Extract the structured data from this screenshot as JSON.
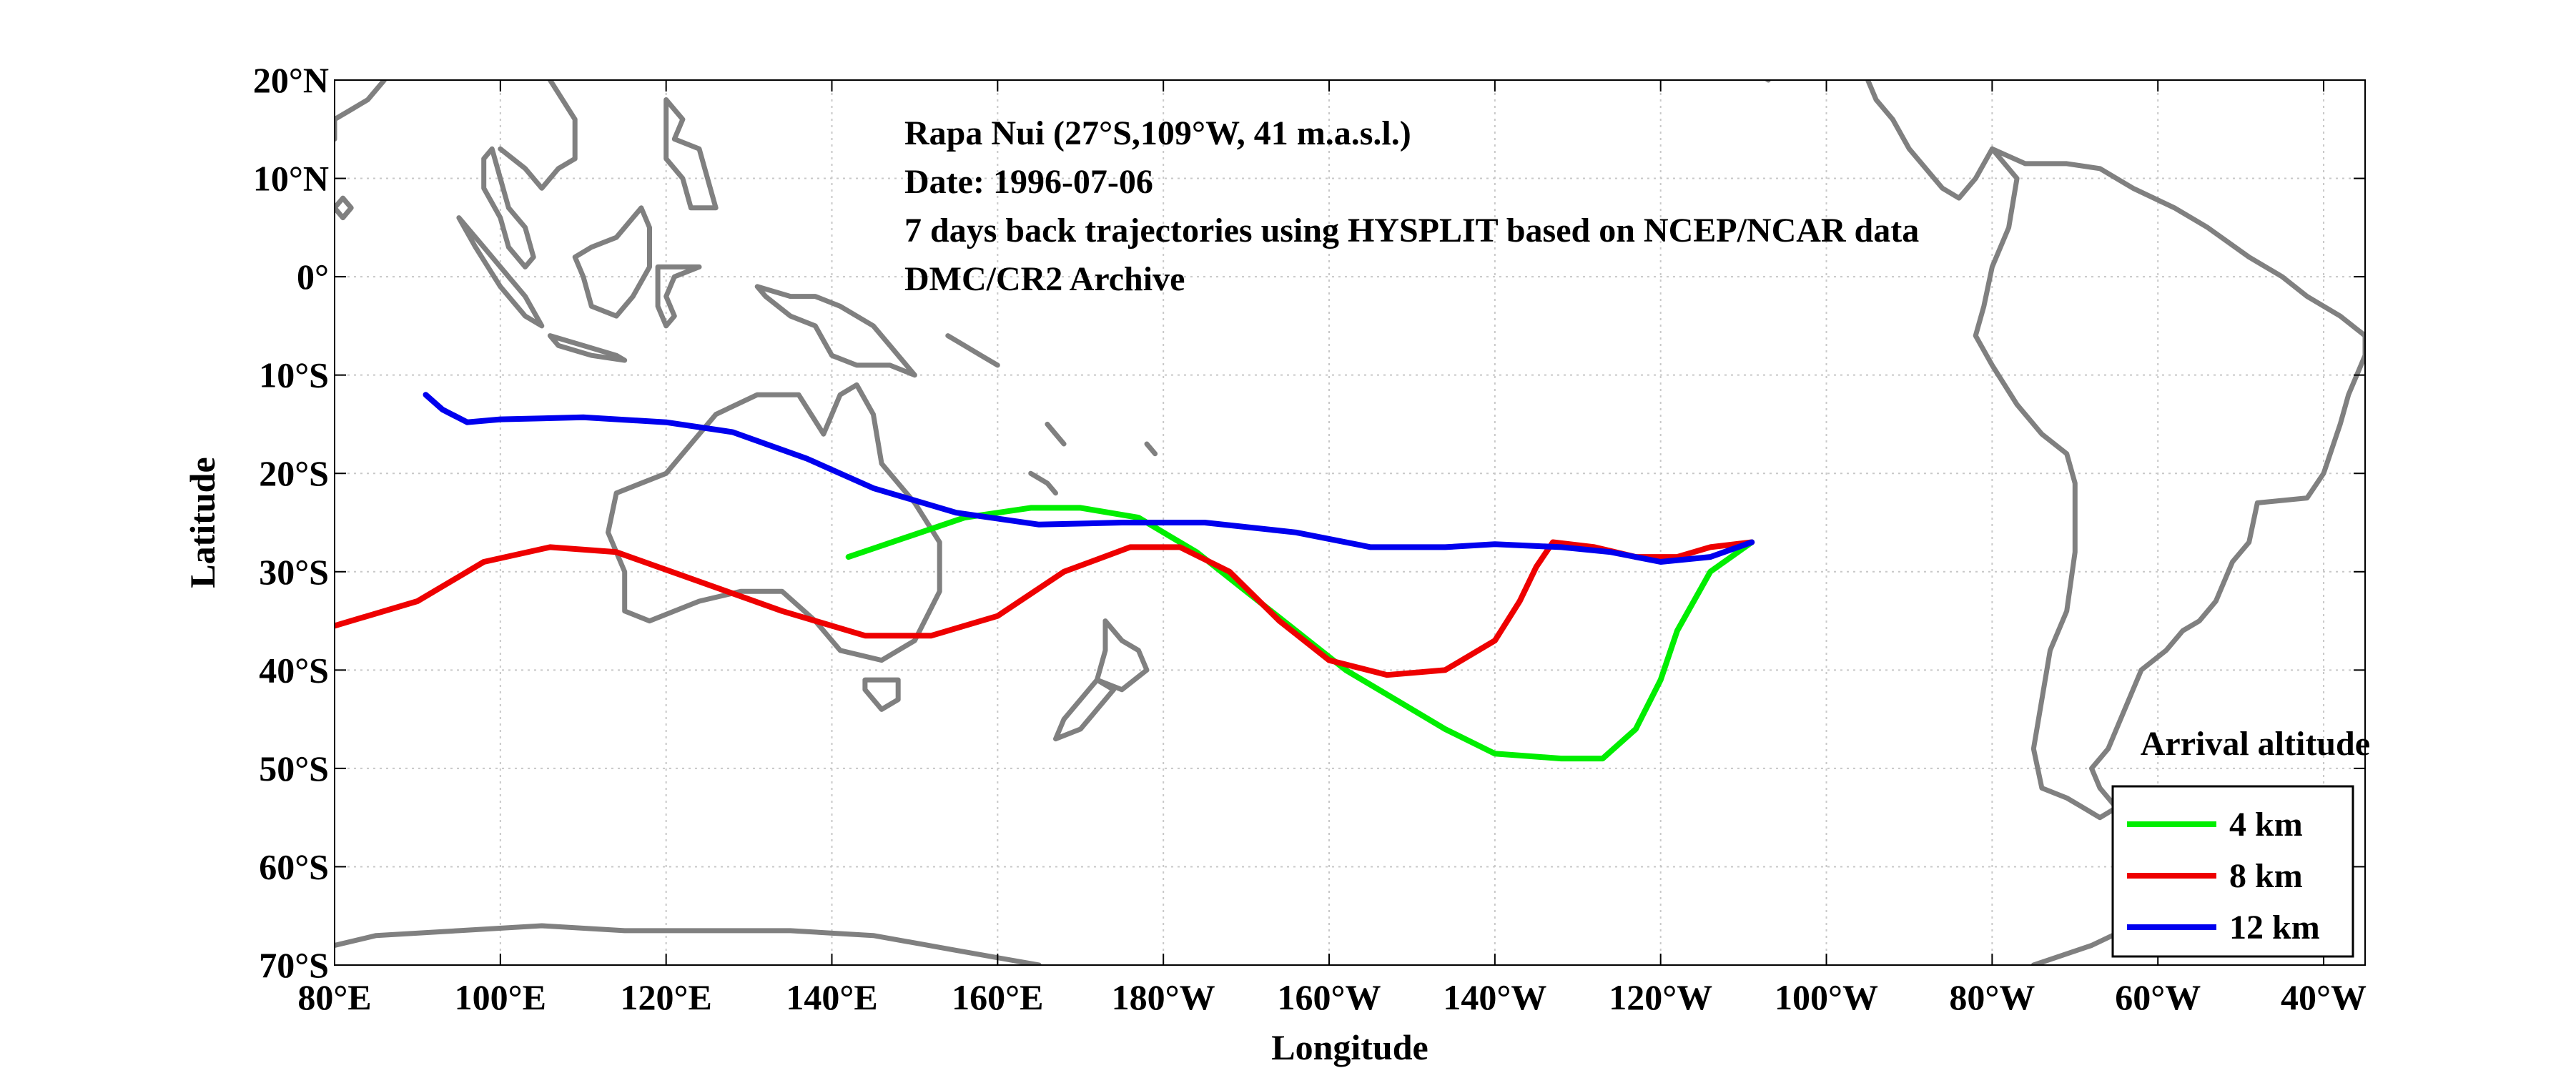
{
  "chart_data": {
    "type": "line",
    "xlabel": "Longitude",
    "ylabel": "Latitude",
    "xlim": [
      80,
      325
    ],
    "ylim": [
      -70,
      20
    ],
    "x_ticks": [
      {
        "value": 80,
        "label": "80°E"
      },
      {
        "value": 100,
        "label": "100°E"
      },
      {
        "value": 120,
        "label": "120°E"
      },
      {
        "value": 140,
        "label": "140°E"
      },
      {
        "value": 160,
        "label": "160°E"
      },
      {
        "value": 180,
        "label": "180°W"
      },
      {
        "value": 200,
        "label": "160°W"
      },
      {
        "value": 220,
        "label": "140°W"
      },
      {
        "value": 240,
        "label": "120°W"
      },
      {
        "value": 260,
        "label": "100°W"
      },
      {
        "value": 280,
        "label": "80°W"
      },
      {
        "value": 300,
        "label": "60°W"
      },
      {
        "value": 320,
        "label": "40°W"
      }
    ],
    "y_ticks": [
      {
        "value": 20,
        "label": "20°N"
      },
      {
        "value": 10,
        "label": "10°N"
      },
      {
        "value": 0,
        "label": "0°"
      },
      {
        "value": -10,
        "label": "10°S"
      },
      {
        "value": -20,
        "label": "20°S"
      },
      {
        "value": -30,
        "label": "30°S"
      },
      {
        "value": -40,
        "label": "40°S"
      },
      {
        "value": -50,
        "label": "50°S"
      },
      {
        "value": -60,
        "label": "60°S"
      },
      {
        "value": -70,
        "label": "70°S"
      }
    ],
    "grid": true,
    "annotations": [
      "Rapa Nui (27°S,109°W, 41 m.a.s.l.)",
      "Date: 1996-07-06",
      "7 days back trajectories using HYSPLIT based on NCEP/NCAR data",
      "DMC/CR2 Archive"
    ],
    "legend": {
      "title": "Arrival altitude",
      "position": "bottom-right"
    },
    "series": [
      {
        "name": "4 km",
        "color": "#00ee00",
        "points": [
          [
            251,
            -27
          ],
          [
            246,
            -30
          ],
          [
            242,
            -36
          ],
          [
            240,
            -41
          ],
          [
            237,
            -46
          ],
          [
            233,
            -49
          ],
          [
            228,
            -49
          ],
          [
            220,
            -48.5
          ],
          [
            214,
            -46
          ],
          [
            208,
            -43
          ],
          [
            202,
            -40
          ],
          [
            196,
            -36
          ],
          [
            190,
            -32
          ],
          [
            184,
            -28
          ],
          [
            177,
            -24.5
          ],
          [
            170,
            -23.5
          ],
          [
            164,
            -23.5
          ],
          [
            156,
            -24.5
          ],
          [
            149,
            -26.5
          ],
          [
            142,
            -28.5
          ]
        ]
      },
      {
        "name": "8 km",
        "color": "#ee0000",
        "points": [
          [
            251,
            -27
          ],
          [
            246,
            -27.5
          ],
          [
            242,
            -28.5
          ],
          [
            237,
            -28.5
          ],
          [
            232,
            -27.5
          ],
          [
            227,
            -27
          ],
          [
            225,
            -29.5
          ],
          [
            223,
            -33
          ],
          [
            220,
            -37
          ],
          [
            214,
            -40
          ],
          [
            207,
            -40.5
          ],
          [
            200,
            -39
          ],
          [
            194,
            -35
          ],
          [
            188,
            -30
          ],
          [
            182,
            -27.5
          ],
          [
            176,
            -27.5
          ],
          [
            168,
            -30
          ],
          [
            160,
            -34.5
          ],
          [
            152,
            -36.5
          ],
          [
            144,
            -36.5
          ],
          [
            134,
            -34
          ],
          [
            124,
            -31
          ],
          [
            114,
            -28
          ],
          [
            106,
            -27.5
          ],
          [
            98,
            -29
          ],
          [
            90,
            -33
          ],
          [
            80,
            -35.5
          ]
        ]
      },
      {
        "name": "12 km",
        "color": "#0000ee",
        "points": [
          [
            251,
            -27
          ],
          [
            246,
            -28.5
          ],
          [
            240,
            -29
          ],
          [
            234,
            -28
          ],
          [
            228,
            -27.5
          ],
          [
            220,
            -27.2
          ],
          [
            214,
            -27.5
          ],
          [
            205,
            -27.5
          ],
          [
            196,
            -26
          ],
          [
            185,
            -25
          ],
          [
            175,
            -25
          ],
          [
            165,
            -25.2
          ],
          [
            155,
            -24
          ],
          [
            145,
            -21.5
          ],
          [
            137,
            -18.5
          ],
          [
            128,
            -15.8
          ],
          [
            120,
            -14.8
          ],
          [
            110,
            -14.3
          ],
          [
            100,
            -14.5
          ],
          [
            96,
            -14.8
          ],
          [
            93,
            -13.5
          ],
          [
            91,
            -12
          ]
        ]
      }
    ],
    "coastlines": [
      [
        [
          280,
          13
        ],
        [
          283,
          10
        ],
        [
          282,
          5
        ],
        [
          280,
          1
        ],
        [
          279,
          -3
        ],
        [
          278,
          -6
        ],
        [
          280,
          -9
        ],
        [
          283,
          -13
        ],
        [
          286,
          -16
        ],
        [
          289,
          -18
        ],
        [
          290,
          -21
        ],
        [
          290,
          -28
        ],
        [
          289,
          -34
        ],
        [
          287,
          -38
        ],
        [
          286,
          -43
        ],
        [
          285,
          -48
        ],
        [
          286,
          -52
        ],
        [
          289,
          -53
        ],
        [
          291,
          -54
        ],
        [
          293,
          -55
        ],
        [
          295,
          -54
        ],
        [
          293,
          -52
        ],
        [
          292,
          -50
        ],
        [
          294,
          -48
        ],
        [
          295,
          -46
        ],
        [
          296,
          -44
        ],
        [
          297,
          -42
        ],
        [
          298,
          -40
        ],
        [
          301,
          -38
        ],
        [
          303,
          -36
        ],
        [
          305,
          -35
        ],
        [
          307,
          -33
        ],
        [
          309,
          -29
        ],
        [
          311,
          -27
        ],
        [
          312,
          -23
        ],
        [
          318,
          -22.5
        ],
        [
          320,
          -20
        ],
        [
          322,
          -15
        ],
        [
          323,
          -12
        ],
        [
          325,
          -8
        ],
        [
          325,
          -6
        ],
        [
          322,
          -4
        ],
        [
          318,
          -2
        ],
        [
          315,
          0
        ],
        [
          311,
          2
        ],
        [
          306,
          5
        ],
        [
          302,
          7
        ],
        [
          297,
          9
        ],
        [
          293,
          11
        ],
        [
          289,
          11.5
        ],
        [
          284,
          11.5
        ],
        [
          280,
          13
        ]
      ],
      [
        [
          280,
          13
        ],
        [
          278,
          10
        ],
        [
          276,
          8
        ],
        [
          274,
          9
        ],
        [
          272,
          11
        ],
        [
          270,
          13
        ],
        [
          268,
          16
        ],
        [
          266,
          18
        ],
        [
          265,
          20
        ]
      ],
      [
        [
          253,
          20
        ],
        [
          251,
          21
        ],
        [
          249,
          23
        ],
        [
          247,
          24
        ]
      ],
      [
        [
          114,
          -22
        ],
        [
          120,
          -20
        ],
        [
          126,
          -14
        ],
        [
          131,
          -12
        ],
        [
          136,
          -12
        ],
        [
          139,
          -16
        ],
        [
          141,
          -12
        ],
        [
          143,
          -11
        ],
        [
          145,
          -14
        ],
        [
          146,
          -19
        ],
        [
          150,
          -23
        ],
        [
          153,
          -27
        ],
        [
          153,
          -32
        ],
        [
          150,
          -37
        ],
        [
          146,
          -39
        ],
        [
          141,
          -38
        ],
        [
          138,
          -35
        ],
        [
          134,
          -32
        ],
        [
          129,
          -32
        ],
        [
          124,
          -33
        ],
        [
          118,
          -35
        ],
        [
          115,
          -34
        ],
        [
          115,
          -30
        ],
        [
          113,
          -26
        ],
        [
          114,
          -22
        ]
      ],
      [
        [
          144,
          -41
        ],
        [
          148,
          -41
        ],
        [
          148,
          -43
        ],
        [
          146,
          -44
        ],
        [
          144,
          -42
        ],
        [
          144,
          -41
        ]
      ],
      [
        [
          173,
          -35
        ],
        [
          175,
          -37
        ],
        [
          177,
          -38
        ],
        [
          178,
          -40
        ],
        [
          175,
          -42
        ],
        [
          172,
          -41
        ],
        [
          173,
          -38
        ],
        [
          173,
          -35
        ]
      ],
      [
        [
          172,
          -41
        ],
        [
          174,
          -42
        ],
        [
          172,
          -44
        ],
        [
          170,
          -46
        ],
        [
          167,
          -47
        ],
        [
          168,
          -45
        ],
        [
          170,
          -43
        ],
        [
          172,
          -41
        ]
      ],
      [
        [
          95,
          6
        ],
        [
          98,
          3
        ],
        [
          101,
          0
        ],
        [
          103,
          -2
        ],
        [
          105,
          -5
        ],
        [
          103,
          -4
        ],
        [
          100,
          -1
        ],
        [
          97,
          3
        ],
        [
          95,
          6
        ]
      ],
      [
        [
          106,
          -6
        ],
        [
          110,
          -7
        ],
        [
          114,
          -8
        ],
        [
          115,
          -8.5
        ],
        [
          111,
          -8
        ],
        [
          107,
          -7
        ],
        [
          106,
          -6
        ]
      ],
      [
        [
          109,
          2
        ],
        [
          111,
          3
        ],
        [
          114,
          4
        ],
        [
          117,
          7
        ],
        [
          118,
          5
        ],
        [
          118,
          1
        ],
        [
          116,
          -2
        ],
        [
          114,
          -4
        ],
        [
          111,
          -3
        ],
        [
          110,
          0
        ],
        [
          109,
          2
        ]
      ],
      [
        [
          119,
          1
        ],
        [
          121,
          1
        ],
        [
          124,
          1
        ],
        [
          121,
          0
        ],
        [
          120,
          -2
        ],
        [
          121,
          -4
        ],
        [
          120,
          -5
        ],
        [
          119,
          -3
        ],
        [
          119,
          1
        ]
      ],
      [
        [
          131,
          -1
        ],
        [
          135,
          -2
        ],
        [
          138,
          -2
        ],
        [
          141,
          -3
        ],
        [
          145,
          -5
        ],
        [
          147,
          -7
        ],
        [
          150,
          -10
        ],
        [
          147,
          -9
        ],
        [
          143,
          -9
        ],
        [
          140,
          -8
        ],
        [
          138,
          -5
        ],
        [
          135,
          -4
        ],
        [
          132,
          -2
        ],
        [
          131,
          -1
        ]
      ],
      [
        [
          120,
          18
        ],
        [
          122,
          16
        ],
        [
          121,
          14
        ],
        [
          124,
          13
        ],
        [
          125,
          10
        ],
        [
          126,
          7
        ],
        [
          123,
          7
        ],
        [
          122,
          10
        ],
        [
          120,
          12
        ],
        [
          120,
          16
        ],
        [
          120,
          18
        ]
      ],
      [
        [
          99,
          13
        ],
        [
          100,
          10
        ],
        [
          101,
          7
        ],
        [
          103,
          5
        ],
        [
          104,
          2
        ],
        [
          103,
          1
        ],
        [
          101,
          3
        ],
        [
          100,
          6
        ],
        [
          98,
          9
        ],
        [
          98,
          12
        ],
        [
          99,
          13
        ]
      ],
      [
        [
          100,
          13
        ],
        [
          103,
          11
        ],
        [
          105,
          9
        ],
        [
          107,
          11
        ],
        [
          109,
          12
        ],
        [
          109,
          16
        ],
        [
          106,
          20
        ]
      ],
      [
        [
          81,
          8
        ],
        [
          82,
          7
        ],
        [
          81,
          6
        ],
        [
          80,
          7
        ],
        [
          81,
          8
        ]
      ],
      [
        [
          80,
          14
        ],
        [
          80,
          16
        ],
        [
          82,
          17
        ],
        [
          84,
          18
        ],
        [
          86,
          20
        ]
      ],
      [
        [
          154,
          -6
        ],
        [
          156,
          -7
        ],
        [
          158,
          -8
        ],
        [
          160,
          -9
        ]
      ],
      [
        [
          166,
          -15
        ],
        [
          167,
          -16
        ],
        [
          168,
          -17
        ]
      ],
      [
        [
          164,
          -20
        ],
        [
          166,
          -21
        ],
        [
          167,
          -22
        ]
      ],
      [
        [
          178,
          -17
        ],
        [
          179,
          -18
        ]
      ],
      [
        [
          80,
          -68
        ],
        [
          85,
          -67
        ],
        [
          95,
          -66.5
        ],
        [
          105,
          -66
        ],
        [
          115,
          -66.5
        ],
        [
          125,
          -66.5
        ],
        [
          135,
          -66.5
        ],
        [
          145,
          -67
        ],
        [
          155,
          -68.5
        ],
        [
          165,
          -70
        ]
      ],
      [
        [
          285,
          -70
        ],
        [
          292,
          -68
        ],
        [
          297,
          -66
        ],
        [
          300,
          -65
        ]
      ]
    ]
  }
}
